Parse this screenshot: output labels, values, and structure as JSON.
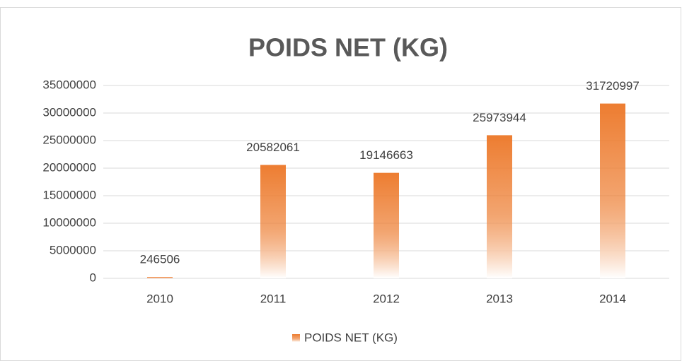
{
  "chart_data": {
    "type": "bar",
    "title": "POIDS NET (KG)",
    "categories": [
      "2010",
      "2011",
      "2012",
      "2013",
      "2014"
    ],
    "series": [
      {
        "name": "POIDS NET (KG)",
        "color": "#ed7d31",
        "values": [
          246506,
          20582061,
          19146663,
          25973944,
          31720997
        ]
      }
    ],
    "ylim": [
      0,
      35000000
    ],
    "yticks": [
      0,
      5000000,
      10000000,
      15000000,
      20000000,
      25000000,
      30000000,
      35000000
    ],
    "grid": true,
    "legend": "bottom"
  }
}
